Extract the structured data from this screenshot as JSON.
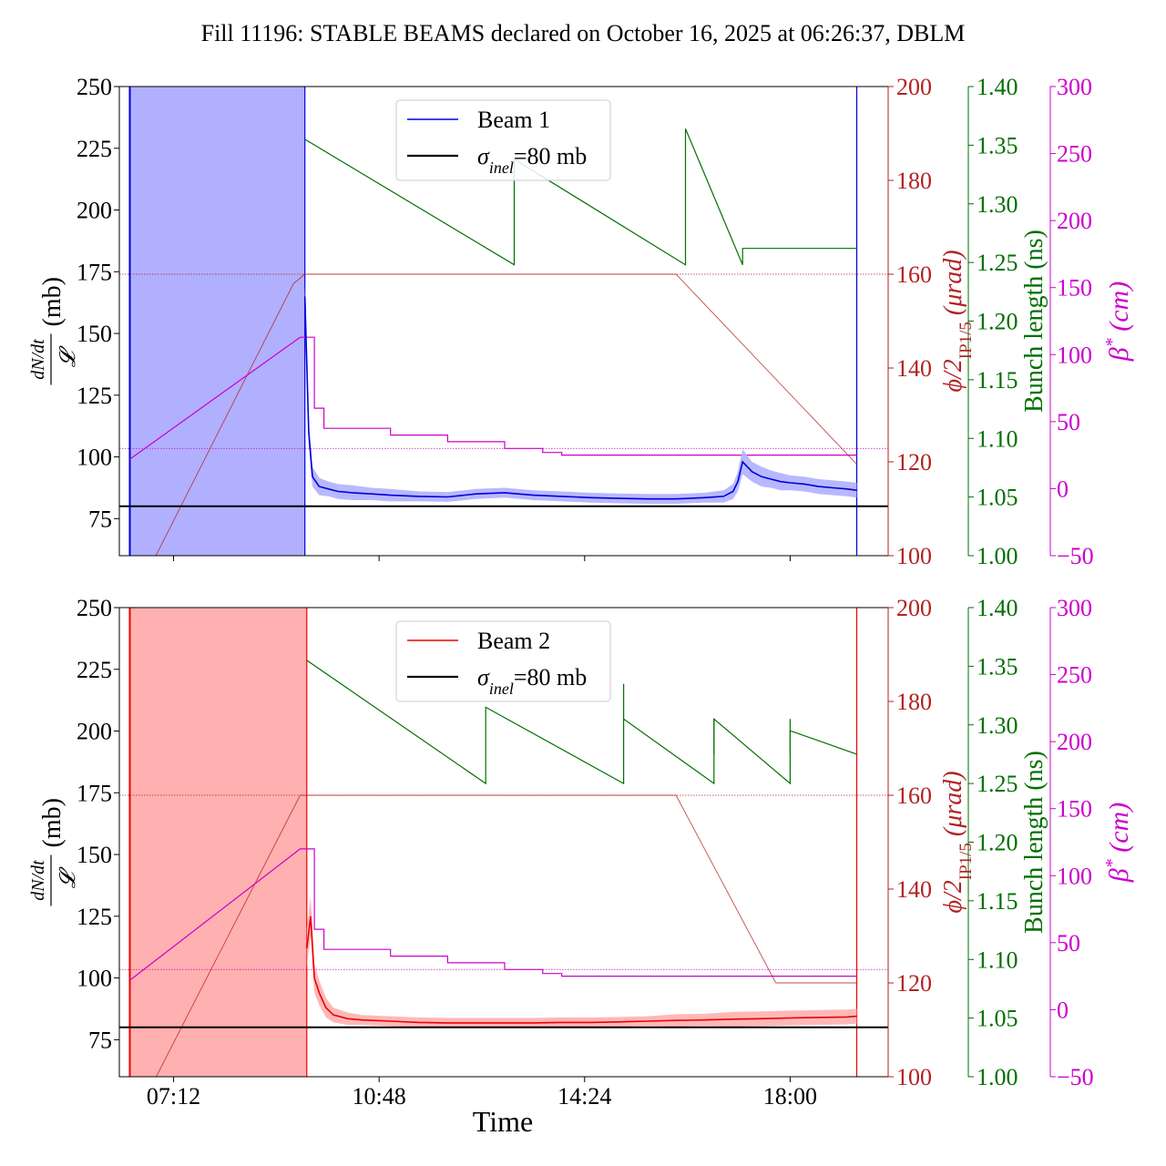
{
  "title": "Fill 11196: STABLE BEAMS declared on October 16, 2025 at 06:26:37, DBLM",
  "xlabel": "Time",
  "x_ticks": [
    "07:12",
    "10:48",
    "14:24",
    "18:00"
  ],
  "axis_labels": {
    "ratio_num": "dN/dt",
    "ratio_den": "𝓛",
    "ratio_unit": "(mb)",
    "phi": "ϕ/2",
    "phi_sub": "IP1/5",
    "phi_unit": " (μrad)",
    "bunch": "Bunch length (ns)",
    "beta": "β",
    "beta_sup": "*",
    "beta_unit": " (cm)"
  },
  "colors": {
    "beam1": "#0000dd",
    "beam1_band": "#b0b0ff",
    "beam2": "#ee0000",
    "beam2_band": "#ffb0b0",
    "phi": "#b22222",
    "bunch": "#007000",
    "beta": "#cc00cc",
    "reference": "#000000"
  },
  "chart_data": [
    {
      "type": "line",
      "panel": "top",
      "legend": [
        {
          "label": "Beam 1",
          "color": "#0000dd"
        },
        {
          "label": "σ_inel=80 mb",
          "color": "#000000"
        }
      ],
      "legend_text": {
        "beam": "Beam 1",
        "sigma_sym": "σ",
        "sigma_sub": "inel",
        "sigma_val": "=80 mb"
      },
      "legend_placement": "top-center",
      "xlim": [
        "06:15",
        "19:43"
      ],
      "ylim_left": [
        60,
        250
      ],
      "y_ticks_left": [
        75,
        100,
        125,
        150,
        175,
        200,
        225,
        250
      ],
      "ylim_phi": [
        100,
        200
      ],
      "y_ticks_phi": [
        100,
        120,
        140,
        160,
        180,
        200
      ],
      "ylim_bunch": [
        1.0,
        1.4
      ],
      "y_ticks_bunch": [
        "1.00",
        "1.05",
        "1.10",
        "1.15",
        "1.20",
        "1.25",
        "1.30",
        "1.35",
        "1.40"
      ],
      "ylim_beta": [
        -50,
        300
      ],
      "y_ticks_beta": [
        -50,
        0,
        50,
        100,
        150,
        200,
        250,
        300
      ],
      "filled_region": {
        "start": "06:26",
        "end": "09:30"
      },
      "sigma_inel": 80,
      "beam": {
        "time": [
          "09:30",
          "09:34",
          "09:38",
          "09:45",
          "09:55",
          "10:05",
          "10:20",
          "10:40",
          "11:00",
          "11:30",
          "12:00",
          "12:30",
          "13:00",
          "13:30",
          "14:00",
          "14:30",
          "15:00",
          "15:30",
          "16:00",
          "16:30",
          "16:50",
          "17:00",
          "17:05",
          "17:10",
          "17:20",
          "17:30",
          "17:40",
          "17:50",
          "18:00",
          "18:15",
          "18:30",
          "18:45",
          "19:00",
          "19:10"
        ],
        "ratio": [
          165,
          110,
          92,
          88,
          87,
          86,
          85.5,
          85,
          84.5,
          84,
          83.8,
          85,
          85.5,
          84.5,
          84,
          83.5,
          83.2,
          83,
          83,
          83.5,
          84,
          86,
          90,
          98,
          94,
          92,
          91,
          90,
          89.5,
          89,
          88,
          87.5,
          87,
          86.5
        ],
        "band_half_width": [
          5,
          5,
          4,
          3.5,
          3,
          3,
          3,
          2.5,
          2.5,
          2,
          2,
          2,
          2,
          2,
          2,
          2,
          2,
          2,
          2,
          2,
          2.5,
          3,
          4,
          5,
          4,
          4,
          3.5,
          3.5,
          3,
          3,
          3,
          3,
          3,
          3
        ]
      },
      "phi_urad": {
        "time": [
          "06:26",
          "09:18",
          "09:30",
          "16:00",
          "19:10"
        ],
        "values": [
          89,
          158,
          160,
          160,
          119.5
        ]
      },
      "phi_reference_urad": 160,
      "bunch_length_ns": {
        "time": [
          "09:30",
          "13:10",
          "13:10",
          "16:10",
          "16:10",
          "17:10",
          "17:10",
          "19:10"
        ],
        "values": [
          1.355,
          1.248,
          1.338,
          1.248,
          1.364,
          1.248,
          1.262,
          1.262
        ]
      },
      "beta_cm": {
        "time": [
          "06:26",
          "09:25",
          "09:32",
          "09:40",
          "09:50",
          "11:00",
          "12:00",
          "13:00",
          "13:40",
          "14:00",
          "19:10"
        ],
        "values": [
          22,
          113,
          113,
          60,
          45,
          40,
          35,
          30,
          27,
          25,
          25
        ],
        "reference": 30
      }
    },
    {
      "type": "line",
      "panel": "bottom",
      "legend": [
        {
          "label": "Beam 2",
          "color": "#ee0000"
        },
        {
          "label": "σ_inel=80 mb",
          "color": "#000000"
        }
      ],
      "legend_text": {
        "beam": "Beam 2",
        "sigma_sym": "σ",
        "sigma_sub": "inel",
        "sigma_val": "=80 mb"
      },
      "legend_placement": "top-center",
      "xlim": [
        "06:15",
        "19:43"
      ],
      "ylim_left": [
        60,
        250
      ],
      "y_ticks_left": [
        75,
        100,
        125,
        150,
        175,
        200,
        225,
        250
      ],
      "ylim_phi": [
        100,
        200
      ],
      "y_ticks_phi": [
        100,
        120,
        140,
        160,
        180,
        200
      ],
      "ylim_bunch": [
        1.0,
        1.4
      ],
      "y_ticks_bunch": [
        "1.00",
        "1.05",
        "1.10",
        "1.15",
        "1.20",
        "1.25",
        "1.30",
        "1.35",
        "1.40"
      ],
      "ylim_beta": [
        -50,
        300
      ],
      "y_ticks_beta": [
        -50,
        0,
        50,
        100,
        150,
        200,
        250,
        300
      ],
      "filled_region": {
        "start": "06:26",
        "end": "09:32"
      },
      "sigma_inel": 80,
      "beam": {
        "time": [
          "09:32",
          "09:36",
          "09:40",
          "09:45",
          "09:52",
          "10:00",
          "10:15",
          "10:30",
          "11:00",
          "11:30",
          "12:00",
          "12:30",
          "13:00",
          "13:30",
          "14:00",
          "14:30",
          "15:00",
          "15:30",
          "16:00",
          "16:30",
          "17:00",
          "17:30",
          "18:00",
          "18:30",
          "19:00",
          "19:10"
        ],
        "ratio": [
          112,
          125,
          100,
          94,
          88,
          85,
          83.5,
          83,
          82.5,
          82,
          81.8,
          81.8,
          81.8,
          81.8,
          82,
          82,
          82.2,
          82.5,
          82.8,
          83,
          83.3,
          83.5,
          83.8,
          84,
          84.2,
          84.5
        ],
        "band_half_width": [
          8,
          8,
          6,
          5,
          4,
          3,
          2.5,
          2,
          2,
          2,
          2,
          2,
          2,
          2,
          2,
          2,
          2,
          2,
          2.5,
          2.5,
          3,
          3,
          3,
          3,
          3,
          3
        ]
      },
      "phi_urad": {
        "time": [
          "06:26",
          "09:25",
          "09:32",
          "16:00",
          "17:45",
          "19:10"
        ],
        "values": [
          89,
          160,
          160,
          160,
          120,
          120
        ]
      },
      "phi_reference_urad": 160,
      "bunch_length_ns": {
        "time": [
          "09:32",
          "12:40",
          "12:40",
          "15:05",
          "15:05",
          "16:40",
          "16:40",
          "18:00",
          "18:00",
          "19:10"
        ],
        "values": [
          1.355,
          1.25,
          1.315,
          1.25,
          1.305,
          1.25,
          1.305,
          1.25,
          1.295,
          1.275
        ],
        "spikes": [
          {
            "time": "15:05",
            "value": 1.335
          },
          {
            "time": "16:40",
            "value": 1.305
          },
          {
            "time": "18:00",
            "value": 1.305
          }
        ]
      },
      "beta_cm": {
        "time": [
          "06:26",
          "09:25",
          "09:32",
          "09:40",
          "09:50",
          "11:00",
          "12:00",
          "13:00",
          "13:40",
          "14:00",
          "19:10"
        ],
        "values": [
          22,
          120,
          120,
          60,
          45,
          40,
          35,
          30,
          27,
          25,
          25
        ],
        "reference": 30
      }
    }
  ]
}
